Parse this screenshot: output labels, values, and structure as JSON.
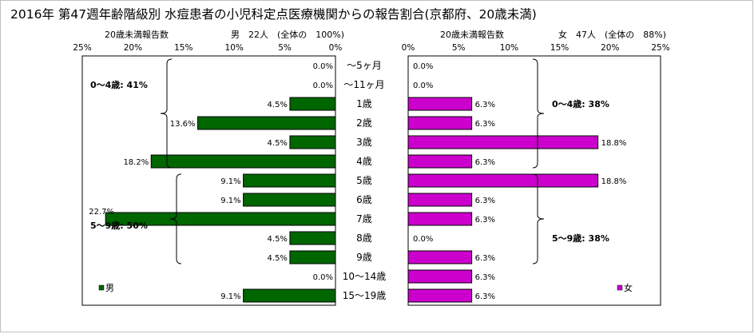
{
  "chart_data": {
    "type": "bar",
    "title": "2016年 第47週年齢階級別 水痘患者の小児科定点医療機関からの報告割合(京都府、20歳未満)",
    "categories": [
      "～5ヶ月",
      "～11ヶ月",
      "1歳",
      "2歳",
      "3歳",
      "4歳",
      "5歳",
      "6歳",
      "7歳",
      "8歳",
      "9歳",
      "10～14歳",
      "15～19歳"
    ],
    "panels": [
      {
        "side": "left",
        "axis_label": "20歳未満報告数",
        "header": "男　22人　(全体の　100%)",
        "ticks": [
          "25%",
          "20%",
          "15%",
          "10%",
          "5%",
          "0%"
        ],
        "xlim": [
          0,
          25
        ],
        "series": [
          {
            "name": "男",
            "color": "#006600",
            "values": [
              0.0,
              0.0,
              4.5,
              13.6,
              4.5,
              18.2,
              9.1,
              9.1,
              22.7,
              4.5,
              4.5,
              0.0,
              9.1
            ]
          }
        ],
        "value_labels": [
          "0.0%",
          "0.0%",
          "4.5%",
          "13.6%",
          "4.5%",
          "18.2%",
          "9.1%",
          "9.1%",
          "22.7%",
          "4.5%",
          "4.5%",
          "0.0%",
          "9.1%"
        ],
        "groups": [
          {
            "label": "0～4歳: 41%",
            "from": 0,
            "to": 5
          },
          {
            "label": "5～9歳: 50%",
            "from": 6,
            "to": 10
          }
        ]
      },
      {
        "side": "right",
        "axis_label": "20歳未満報告数",
        "header": "女　47人　(全体の　88%)",
        "ticks": [
          "0%",
          "5%",
          "10%",
          "15%",
          "20%",
          "25%"
        ],
        "xlim": [
          0,
          25
        ],
        "series": [
          {
            "name": "女",
            "color": "#cc00cc",
            "values": [
              0.0,
              0.0,
              6.3,
              6.3,
              18.8,
              6.3,
              18.8,
              6.3,
              6.3,
              0.0,
              6.3,
              6.3,
              6.3
            ]
          }
        ],
        "value_labels": [
          "0.0%",
          "0.0%",
          "6.3%",
          "6.3%",
          "18.8%",
          "6.3%",
          "18.8%",
          "6.3%",
          "6.3%",
          "0.0%",
          "6.3%",
          "6.3%",
          "6.3%"
        ],
        "groups": [
          {
            "label": "0～4歳: 38%",
            "from": 0,
            "to": 5
          },
          {
            "label": "5～9歳: 38%",
            "from": 6,
            "to": 10
          }
        ]
      }
    ],
    "grid": false,
    "legend": "bottom-left"
  }
}
